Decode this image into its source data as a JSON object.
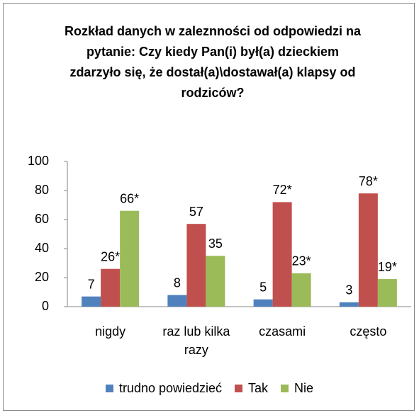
{
  "chart_data": {
    "type": "bar",
    "title": "Rozkład danych w zaleznności od odpowiedzi na pytanie: Czy kiedy Pan(i) był(a) dzieckiem zdarzyło się, że dostał(a)\\dostawał(a) klapsy od rodziców?",
    "categories": [
      "nigdy",
      "raz lub kilka razy",
      "czasami",
      "często"
    ],
    "series": [
      {
        "name": "trudno powiedzieć",
        "color": "#4f81bd",
        "values": [
          7,
          8,
          5,
          3
        ],
        "value_labels": [
          "7",
          "8",
          "5",
          "3"
        ]
      },
      {
        "name": "Tak",
        "color": "#c0504d",
        "values": [
          26,
          57,
          72,
          78
        ],
        "value_labels": [
          "26*",
          "57",
          "72*",
          "78*"
        ]
      },
      {
        "name": "Nie",
        "color": "#9bbb59",
        "values": [
          66,
          35,
          23,
          19
        ],
        "value_labels": [
          "66*",
          "35",
          "23*",
          "19*"
        ]
      }
    ],
    "ylim": [
      0,
      100
    ],
    "yticks": [
      0,
      20,
      40,
      60,
      80,
      100
    ],
    "grid": false,
    "legend": "bottom"
  }
}
